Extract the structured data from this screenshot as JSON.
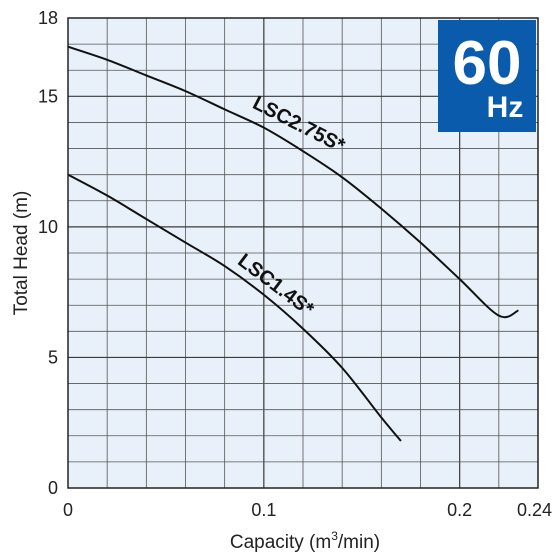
{
  "chart_data": {
    "type": "line",
    "xlabel_main": "Capacity (m",
    "xlabel_sup": "3",
    "xlabel_tail": "/min)",
    "ylabel": "Total Head (m)",
    "xlim": [
      0,
      0.24
    ],
    "ylim": [
      0,
      18
    ],
    "x_ticks": [
      0,
      0.1,
      0.2,
      0.24
    ],
    "x_tick_labels": [
      "0",
      "0.1",
      "0.2",
      "0.24"
    ],
    "y_ticks": [
      0,
      5,
      10,
      15,
      18
    ],
    "y_tick_labels": [
      "0",
      "5",
      "10",
      "15",
      "18"
    ],
    "grid": true,
    "series": [
      {
        "name": "LSC2.75S*",
        "x": [
          0,
          0.02,
          0.04,
          0.06,
          0.08,
          0.1,
          0.12,
          0.14,
          0.16,
          0.18,
          0.2,
          0.22,
          0.23
        ],
        "y": [
          16.9,
          16.4,
          15.8,
          15.2,
          14.5,
          13.8,
          12.9,
          11.9,
          10.7,
          9.4,
          8.0,
          6.6,
          6.8
        ]
      },
      {
        "name": "LSC1.4S*",
        "x": [
          0,
          0.02,
          0.04,
          0.06,
          0.08,
          0.1,
          0.12,
          0.14,
          0.16,
          0.17
        ],
        "y": [
          12.0,
          11.2,
          10.3,
          9.4,
          8.5,
          7.4,
          6.1,
          4.6,
          2.7,
          1.8
        ]
      }
    ],
    "badge": {
      "big": "60",
      "small": "Hz",
      "color": "#0a5bab"
    },
    "background_color": "#e8f1f9"
  }
}
